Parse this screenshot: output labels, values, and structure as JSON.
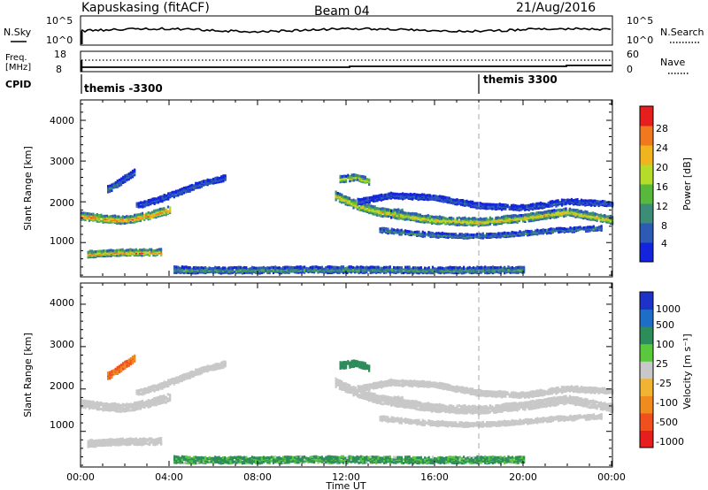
{
  "header": {
    "station": "Kapuskasing (fitACF)",
    "beam": "Beam 04",
    "date": "21/Aug/2016"
  },
  "noise_panel": {
    "left_label": "N.Sky",
    "right_label": "N.Search",
    "left_ticks": [
      "10^5",
      "10^0"
    ],
    "right_ticks": [
      "10^5",
      "10^0"
    ]
  },
  "freq_panel": {
    "left_label_1": "Freq.",
    "left_label_2": "[MHz]",
    "right_label": "Nave",
    "left_ticks": [
      "18",
      "8"
    ],
    "right_ticks": [
      "60",
      "0"
    ]
  },
  "cpid_panel": {
    "label": "CPID",
    "segments": [
      {
        "text": "themis -3300",
        "start_hour": 0
      },
      {
        "text": "themis 3300",
        "start_hour": 18
      }
    ]
  },
  "axes": {
    "time_label": "Time UT",
    "range_label": "Slant Range [km]",
    "time_ticks": [
      "00:00",
      "04:00",
      "08:00",
      "12:00",
      "16:00",
      "20:00",
      "00:00"
    ],
    "range_ticks": [
      "1000",
      "2000",
      "3000",
      "4000"
    ]
  },
  "power_scale": {
    "title": "Power [dB]",
    "labels": [
      "4",
      "8",
      "12",
      "16",
      "20",
      "24",
      "28"
    ],
    "colors": [
      "#1424dc",
      "#2c5ab4",
      "#3c8c78",
      "#58b83c",
      "#b4dc28",
      "#f0b41e",
      "#f0781e",
      "#e61e1e"
    ]
  },
  "velocity_scale": {
    "title": "Velocity [m s⁻¹]",
    "labels": [
      "1000",
      "500",
      "100",
      "25",
      "-25",
      "-100",
      "-500",
      "-1000"
    ],
    "colors": [
      "#1e32c8",
      "#1e6ec8",
      "#2c8c5a",
      "#5ac83c",
      "#c8c8c8",
      "#f0b432",
      "#f08c1e",
      "#f0501e",
      "#e61e1e"
    ]
  },
  "chart_data": {
    "type": "heatmap",
    "x_range_hours": [
      0,
      24
    ],
    "y_range_km": [
      180,
      4500
    ],
    "echo_bands": [
      {
        "name": "",
        "t": [
          0.0,
          1.0,
          2.0,
          3.0,
          4.0
        ],
        "km": [
          1650,
          1580,
          1550,
          1650,
          1800
        ],
        "width_km": 160,
        "power": 26,
        "velocity": 0
      },
      {
        "name": "",
        "t": [
          2.5,
          3.5,
          4.5,
          5.5,
          6.5
        ],
        "km": [
          1900,
          2050,
          2250,
          2450,
          2580
        ],
        "width_km": 120,
        "power": 6,
        "velocity": 0
      },
      {
        "name": "",
        "t": [
          0.3,
          1.5,
          3.0,
          3.6
        ],
        "km": [
          710,
          750,
          760,
          760
        ],
        "width_km": 130,
        "power": 26,
        "velocity": 0
      },
      {
        "name": "",
        "t": [
          1.2,
          1.8,
          2.4
        ],
        "km": [
          2300,
          2500,
          2720
        ],
        "width_km": 140,
        "power": 8,
        "velocity": -300
      },
      {
        "name": "",
        "t": [
          11.5,
          12.5,
          13.5,
          14.5
        ],
        "km": [
          2150,
          1900,
          1750,
          1700
        ],
        "width_km": 180,
        "power": 22,
        "velocity": 0
      },
      {
        "name": "",
        "t": [
          14.0,
          16.0,
          18.0,
          20.0,
          22.0,
          24.0
        ],
        "km": [
          1700,
          1550,
          1500,
          1600,
          1750,
          1550
        ],
        "width_km": 160,
        "power": 22,
        "velocity": 0
      },
      {
        "name": "",
        "t": [
          12.5,
          14.0,
          16.0,
          18.0,
          20.0,
          22.0,
          24.0
        ],
        "km": [
          2000,
          2150,
          2100,
          1900,
          1850,
          2000,
          1950
        ],
        "width_km": 110,
        "power": 6,
        "velocity": 0
      },
      {
        "name": "",
        "t": [
          13.5,
          15.5,
          17.5,
          19.5,
          21.5,
          23.5
        ],
        "km": [
          1300,
          1200,
          1150,
          1200,
          1300,
          1350
        ],
        "width_km": 90,
        "power": 10,
        "velocity": 0
      },
      {
        "name": "",
        "t": [
          11.7,
          12.4,
          13.0
        ],
        "km": [
          2550,
          2600,
          2500
        ],
        "width_km": 130,
        "power": 20,
        "velocity": 120
      },
      {
        "name": "",
        "t": [
          4.2,
          6.0,
          8.0,
          10.0,
          12.0,
          14.0,
          16.0,
          20.0
        ],
        "km": [
          330,
          320,
          320,
          330,
          330,
          330,
          320,
          330
        ],
        "width_km": 130,
        "power": 12,
        "velocity": 80
      }
    ]
  }
}
